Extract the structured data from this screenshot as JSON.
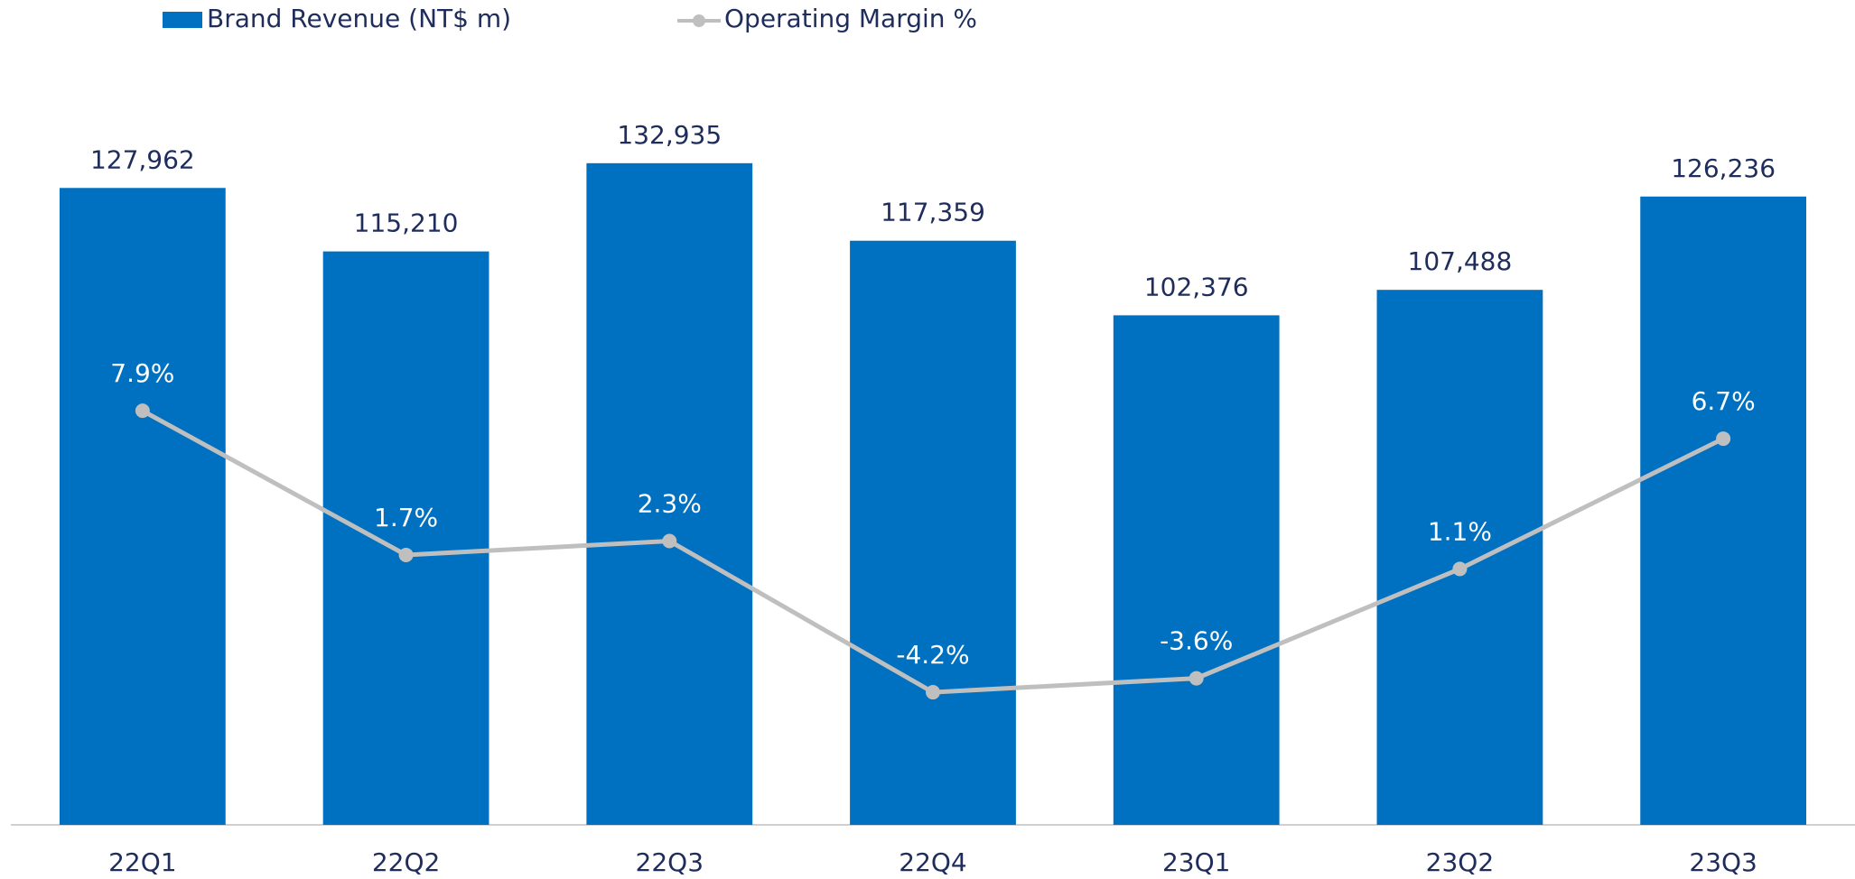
{
  "chart_data": {
    "type": "bar",
    "categories": [
      "22Q1",
      "22Q2",
      "22Q3",
      "22Q4",
      "23Q1",
      "23Q2",
      "23Q3"
    ],
    "series": [
      {
        "name": "Brand Revenue (NT$ m)",
        "type": "bar",
        "color": "#0070c0",
        "values": [
          127962,
          115210,
          132935,
          117359,
          102376,
          107488,
          126236
        ],
        "value_labels": [
          "127,962",
          "115,210",
          "132,935",
          "117,359",
          "102,376",
          "107,488",
          "126,236"
        ]
      },
      {
        "name": "Operating Margin %",
        "type": "line",
        "axis": "y2",
        "color": "#bfbfbf",
        "values": [
          7.9,
          1.7,
          2.3,
          -4.2,
          -3.6,
          1.1,
          6.7
        ],
        "value_labels": [
          "7.9%",
          "1.7%",
          "2.3%",
          "-4.2%",
          "-3.6%",
          "1.1%",
          "6.7%"
        ]
      }
    ],
    "ylim": [
      0,
      165000
    ],
    "y2lim": [
      -9.9,
      25.4
    ],
    "legend": "top"
  }
}
